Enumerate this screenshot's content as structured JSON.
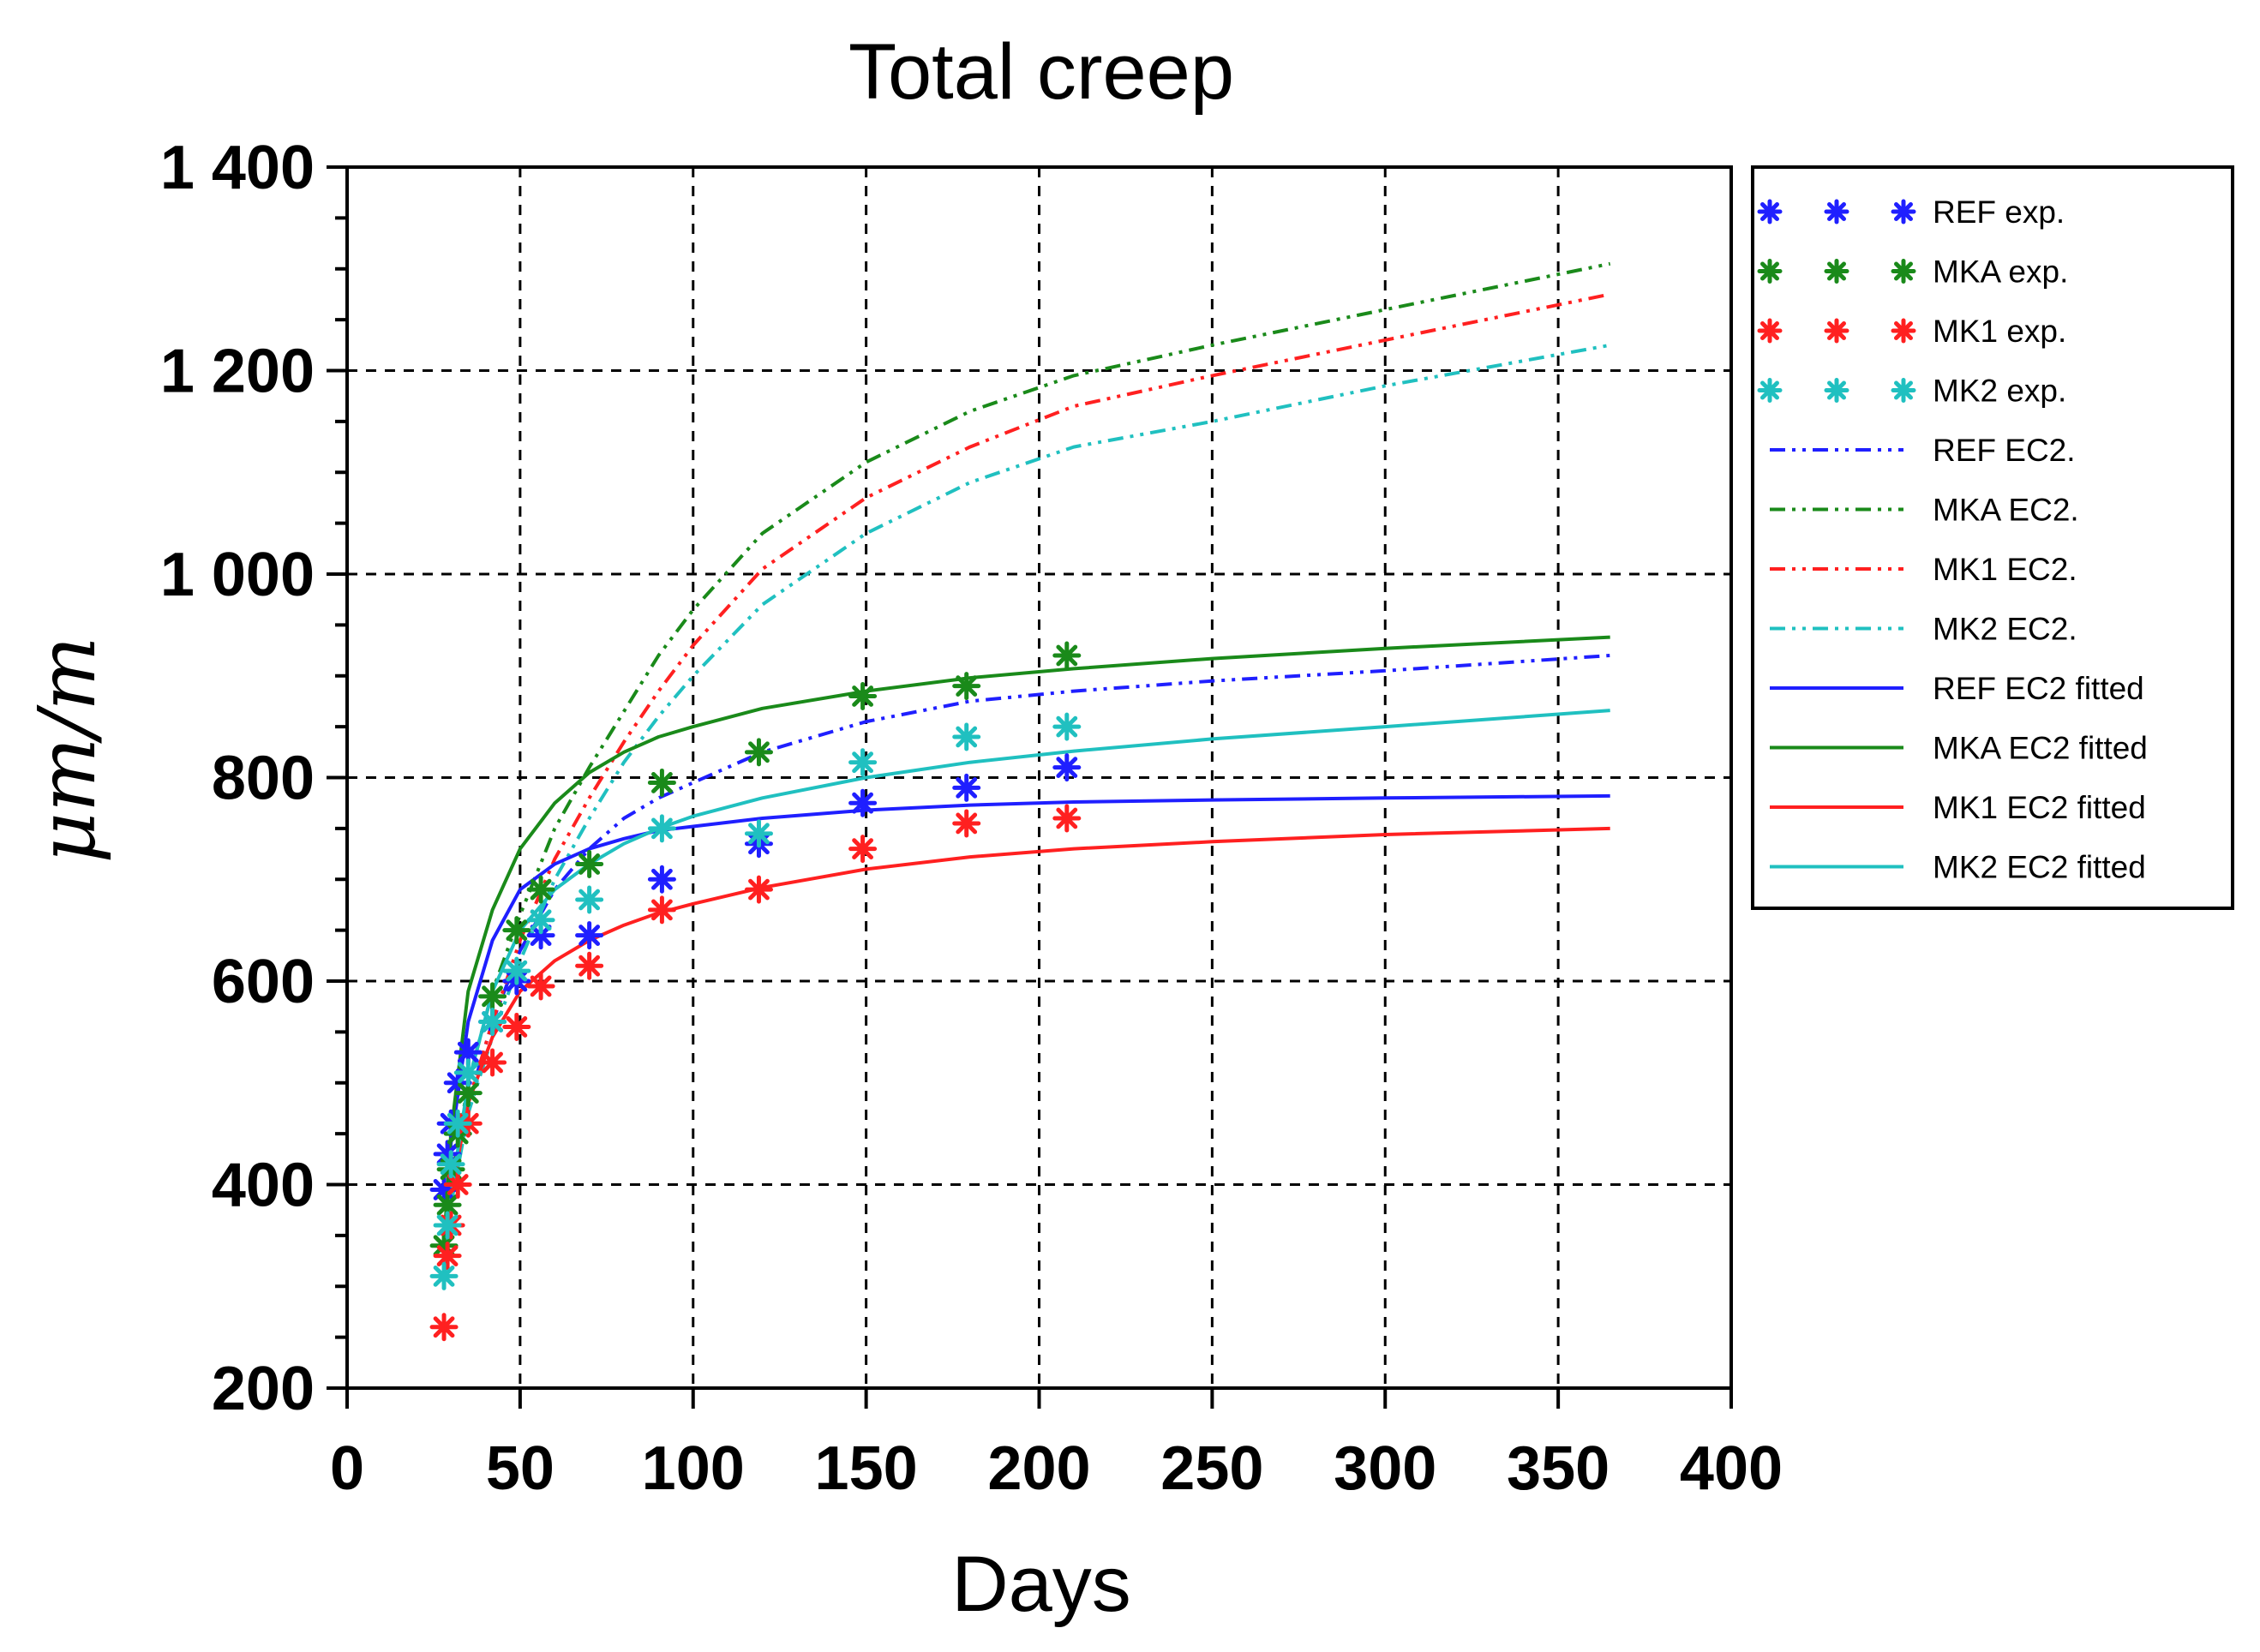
{
  "chart_data": {
    "type": "line",
    "title": "Total creep",
    "xlabel": "Days",
    "ylabel": "μm/m",
    "xlim": [
      0,
      400
    ],
    "ylim": [
      200,
      1400
    ],
    "x_ticks": [
      0,
      50,
      100,
      150,
      200,
      250,
      300,
      350,
      400
    ],
    "x_tick_labels": [
      "0",
      "50",
      "100",
      "150",
      "200",
      "250",
      "300",
      "350",
      "400"
    ],
    "y_ticks": [
      200,
      400,
      600,
      800,
      1000,
      1200,
      1400
    ],
    "y_tick_labels": [
      "200",
      "400",
      "600",
      "800",
      "1 000",
      "1 200",
      "1 400"
    ],
    "y_minor_step": 50,
    "grid": true,
    "legend_position": "right",
    "series": [
      {
        "name": "REF exp.",
        "kind": "points",
        "color": "#1f1fff",
        "x": [
          28,
          29,
          30,
          32,
          35,
          42,
          49,
          56,
          70,
          91,
          119,
          149,
          179,
          208
        ],
        "y": [
          395,
          430,
          460,
          500,
          530,
          560,
          600,
          645,
          645,
          700,
          735,
          775,
          790,
          810
        ]
      },
      {
        "name": "MKA exp.",
        "kind": "points",
        "color": "#1a8a1a",
        "x": [
          28,
          29,
          30,
          32,
          35,
          42,
          49,
          56,
          70,
          91,
          119,
          149,
          179,
          208
        ],
        "y": [
          340,
          380,
          415,
          450,
          490,
          585,
          650,
          690,
          715,
          795,
          825,
          880,
          890,
          920
        ]
      },
      {
        "name": "MK1 exp.",
        "kind": "points",
        "color": "#ff2020",
        "x": [
          28,
          29,
          30,
          32,
          35,
          42,
          49,
          56,
          70,
          91,
          119,
          149,
          179,
          208
        ],
        "y": [
          260,
          330,
          360,
          400,
          460,
          520,
          555,
          595,
          615,
          670,
          690,
          730,
          755,
          760
        ]
      },
      {
        "name": "MK2 exp.",
        "kind": "points",
        "color": "#20c0c0",
        "x": [
          28,
          29,
          30,
          32,
          35,
          42,
          49,
          56,
          70,
          91,
          119,
          149,
          179,
          208
        ],
        "y": [
          310,
          360,
          420,
          460,
          510,
          560,
          610,
          660,
          680,
          750,
          745,
          815,
          840,
          850
        ]
      },
      {
        "name": "REF EC2.",
        "kind": "line",
        "style": "dashdotdot",
        "color": "#1f1fff",
        "x": [
          28,
          30,
          35,
          42,
          50,
          60,
          70,
          80,
          90,
          100,
          120,
          150,
          180,
          210,
          250,
          300,
          365
        ],
        "y": [
          300,
          400,
          480,
          560,
          630,
          690,
          730,
          760,
          780,
          795,
          825,
          855,
          875,
          885,
          895,
          905,
          920
        ]
      },
      {
        "name": "MKA EC2.",
        "kind": "line",
        "style": "dashdotdot",
        "color": "#1a8a1a",
        "x": [
          28,
          30,
          35,
          42,
          50,
          60,
          70,
          80,
          90,
          100,
          120,
          150,
          180,
          210,
          250,
          300,
          365
        ],
        "y": [
          320,
          400,
          500,
          590,
          665,
          750,
          810,
          865,
          920,
          965,
          1040,
          1110,
          1160,
          1195,
          1225,
          1260,
          1305
        ]
      },
      {
        "name": "MK1 EC2.",
        "kind": "line",
        "style": "dashdotdot",
        "color": "#ff2020",
        "x": [
          28,
          30,
          35,
          42,
          50,
          60,
          70,
          80,
          90,
          100,
          120,
          150,
          180,
          210,
          250,
          300,
          365
        ],
        "y": [
          310,
          390,
          480,
          560,
          640,
          720,
          780,
          835,
          885,
          930,
          1005,
          1075,
          1125,
          1165,
          1195,
          1230,
          1275
        ]
      },
      {
        "name": "MK2 EC2.",
        "kind": "line",
        "style": "dashdotdot",
        "color": "#20c0c0",
        "x": [
          28,
          30,
          35,
          42,
          50,
          60,
          70,
          80,
          90,
          100,
          120,
          150,
          180,
          210,
          250,
          300,
          365
        ],
        "y": [
          300,
          380,
          470,
          545,
          620,
          700,
          760,
          815,
          860,
          900,
          970,
          1040,
          1090,
          1125,
          1150,
          1185,
          1225
        ]
      },
      {
        "name": "REF EC2 fitted",
        "kind": "line",
        "style": "solid",
        "color": "#1f1fff",
        "x": [
          28,
          30,
          35,
          42,
          50,
          60,
          70,
          80,
          90,
          100,
          120,
          150,
          180,
          210,
          250,
          300,
          365
        ],
        "y": [
          330,
          440,
          560,
          640,
          690,
          715,
          730,
          740,
          748,
          752,
          760,
          768,
          773,
          776,
          778,
          780,
          782
        ]
      },
      {
        "name": "MKA EC2 fitted",
        "kind": "line",
        "style": "solid",
        "color": "#1a8a1a",
        "x": [
          28,
          30,
          35,
          42,
          50,
          60,
          70,
          80,
          90,
          100,
          120,
          150,
          180,
          210,
          250,
          300,
          365
        ],
        "y": [
          340,
          450,
          590,
          670,
          730,
          775,
          805,
          825,
          840,
          850,
          868,
          885,
          898,
          907,
          917,
          927,
          938
        ]
      },
      {
        "name": "MK1 EC2 fitted",
        "kind": "line",
        "style": "solid",
        "color": "#ff2020",
        "x": [
          28,
          30,
          35,
          42,
          50,
          60,
          70,
          80,
          90,
          100,
          120,
          150,
          180,
          210,
          250,
          300,
          365
        ],
        "y": [
          300,
          390,
          480,
          545,
          590,
          620,
          640,
          655,
          667,
          676,
          692,
          710,
          722,
          730,
          737,
          744,
          750
        ]
      },
      {
        "name": "MK2 EC2 fitted",
        "kind": "line",
        "style": "solid",
        "color": "#20c0c0",
        "x": [
          28,
          30,
          35,
          42,
          50,
          60,
          70,
          80,
          90,
          100,
          120,
          150,
          180,
          210,
          250,
          300,
          365
        ],
        "y": [
          300,
          390,
          500,
          590,
          650,
          690,
          715,
          735,
          750,
          762,
          780,
          800,
          815,
          826,
          838,
          850,
          866
        ]
      }
    ]
  }
}
